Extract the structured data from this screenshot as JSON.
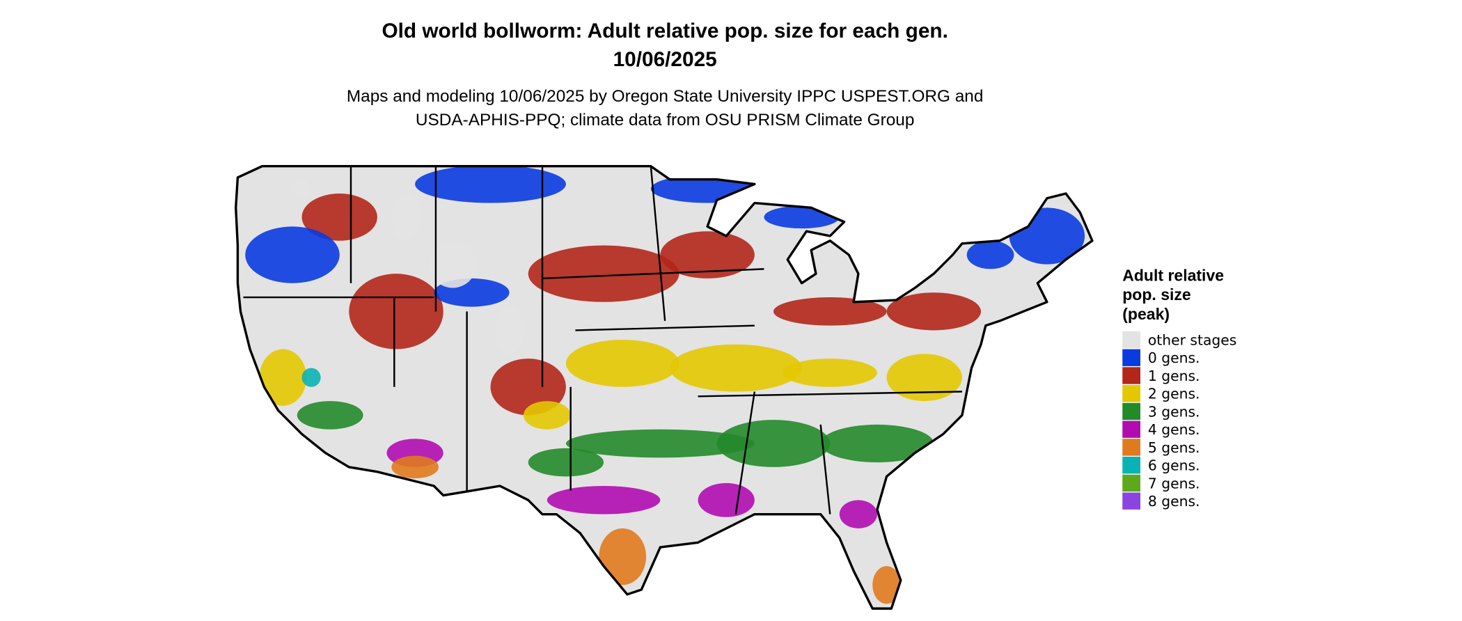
{
  "header": {
    "title": [
      "Old world bollworm: Adult relative pop. size for each gen.",
      "10/06/2025"
    ],
    "subtitle": [
      "Maps and modeling 10/06/2025 by Oregon State University IPPC USPEST.ORG and",
      "USDA-APHIS-PPQ; climate data from OSU PRISM Climate Group"
    ]
  },
  "legend": {
    "title": [
      "Adult relative",
      "pop. size",
      "(peak)"
    ],
    "items": [
      {
        "label": "other stages",
        "color": "#e3e3e3"
      },
      {
        "label": "0 gens.",
        "color": "#0a3be0"
      },
      {
        "label": "1 gens.",
        "color": "#b3261a"
      },
      {
        "label": "2 gens.",
        "color": "#e3c800"
      },
      {
        "label": "3 gens.",
        "color": "#238a2a"
      },
      {
        "label": "4 gens.",
        "color": "#b00cb0"
      },
      {
        "label": "5 gens.",
        "color": "#e07a1e"
      },
      {
        "label": "6 gens.",
        "color": "#0ab3b3"
      },
      {
        "label": "7 gens.",
        "color": "#5da81c"
      },
      {
        "label": "8 gens.",
        "color": "#8a44e0"
      }
    ]
  }
}
